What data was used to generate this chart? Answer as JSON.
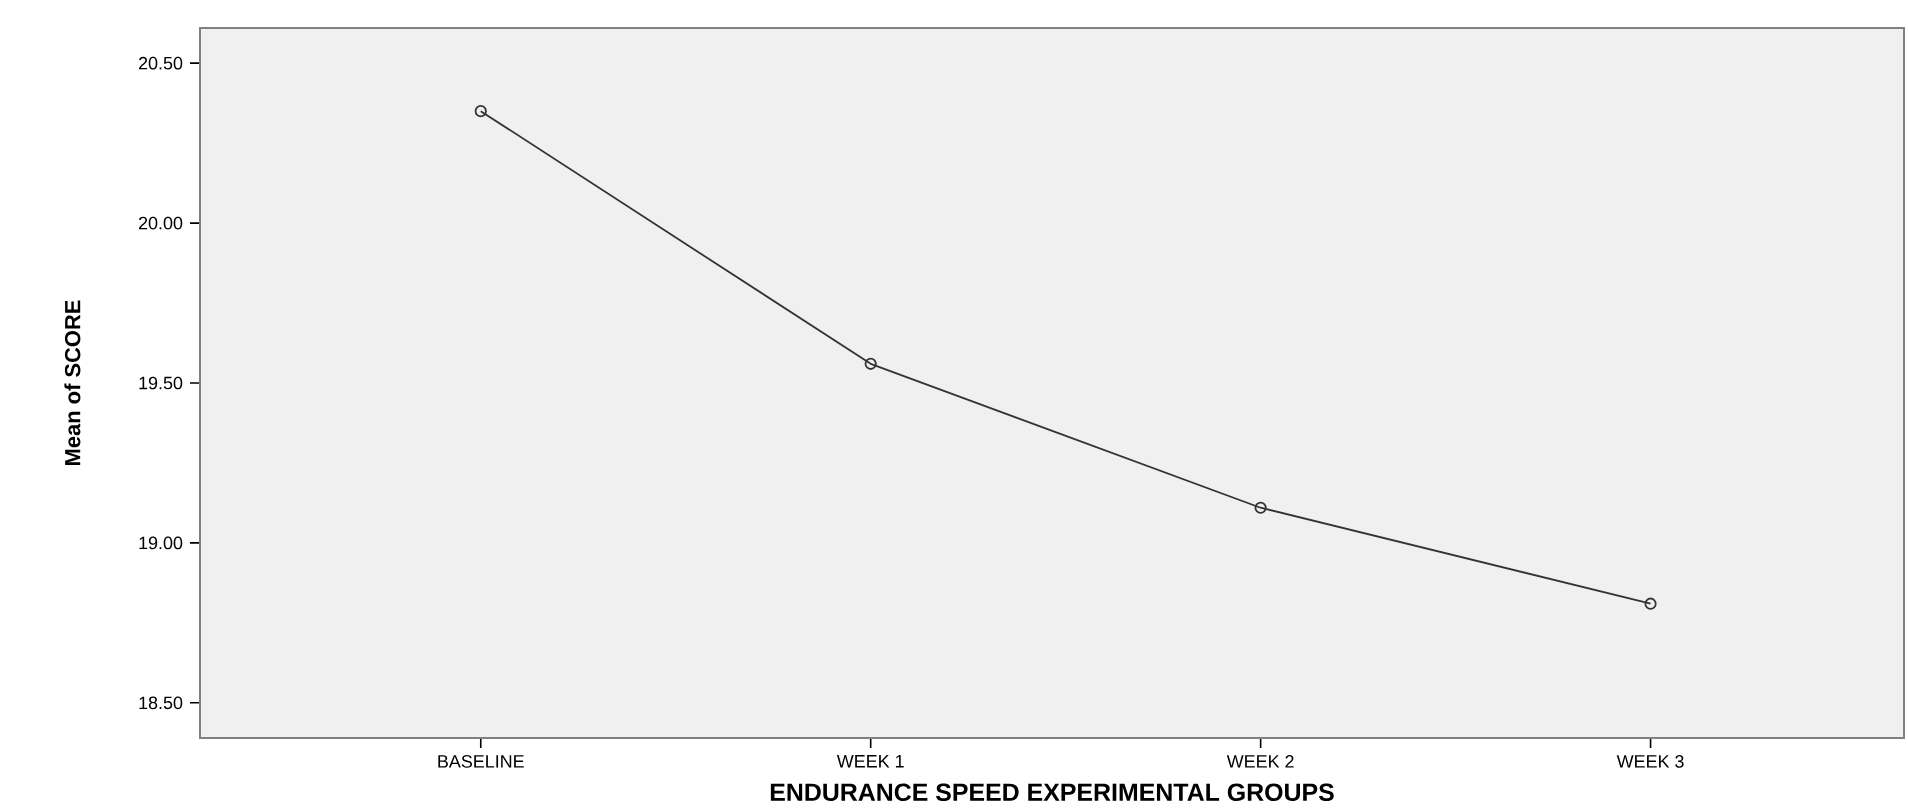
{
  "chart_data": {
    "type": "line",
    "xlabel": "ENDURANCE SPEED EXPERIMENTAL GROUPS",
    "ylabel": "Mean of SCORE",
    "categories": [
      "BASELINE",
      "WEEK 1",
      "WEEK 2",
      "WEEK 3"
    ],
    "series": [
      {
        "color": "#333333",
        "values": [
          20.35,
          19.56,
          19.11,
          18.81
        ]
      }
    ],
    "ylim": [
      18.39,
      20.61
    ],
    "yticks": [
      {
        "value": 18.5,
        "label": "18.50"
      },
      {
        "value": 19,
        "label": "19.00"
      },
      {
        "value": 19.5,
        "label": "19.50"
      },
      {
        "value": 20,
        "label": "20.00"
      },
      {
        "value": 20.5,
        "label": "20.50"
      }
    ],
    "marker": "circle",
    "line_style": "solid",
    "grid": false
  }
}
